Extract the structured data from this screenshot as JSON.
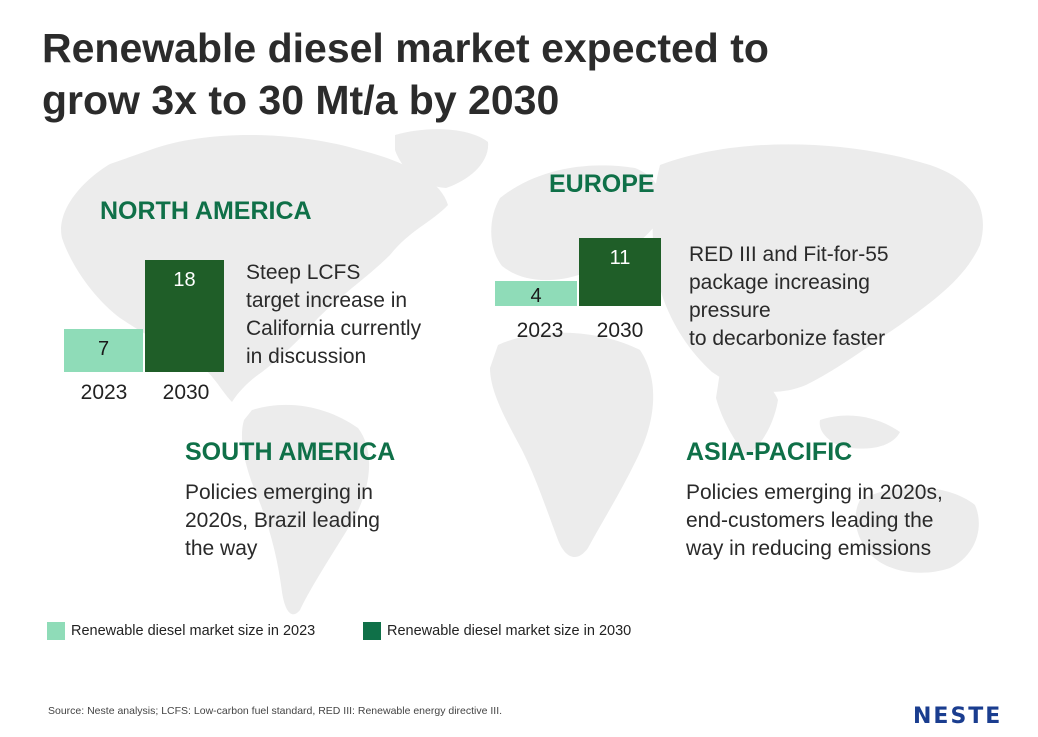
{
  "title": "Renewable diesel market expected to\ngrow 3x to 30 Mt/a by 2030",
  "colors": {
    "light": "#8fdcb8",
    "dark": "#1f5e28",
    "heading": "#0f7048",
    "map": "#ececec"
  },
  "chart_data": {
    "type": "bar",
    "categories": [
      "2023",
      "2030"
    ],
    "regions": [
      {
        "name": "NORTH AMERICA",
        "values": [
          7,
          18
        ],
        "text": "Steep LCFS\ntarget increase in\nCalifornia currently\nin discussion"
      },
      {
        "name": "EUROPE",
        "values": [
          4,
          11
        ],
        "text": "RED III and Fit-for-55\npackage increasing\npressure\nto decarbonize faster"
      },
      {
        "name": "SOUTH AMERICA",
        "values": [],
        "text": "Policies emerging in\n2020s, Brazil leading\nthe way"
      },
      {
        "name": "ASIA-PACIFIC",
        "values": [],
        "text": "Policies emerging in 2020s,\nend-customers leading the\nway in reducing emissions"
      }
    ],
    "series": [
      {
        "name": "Renewable diesel market size in 2023"
      },
      {
        "name": "Renewable diesel market size in 2030"
      }
    ]
  },
  "legend": {
    "item_2023": "Renewable diesel market size in 2023",
    "item_2030": "Renewable diesel market size in 2030"
  },
  "source": "Source: Neste analysis; LCFS: Low-carbon fuel standard, RED III: Renewable energy directive III.",
  "logo": "NESTE"
}
